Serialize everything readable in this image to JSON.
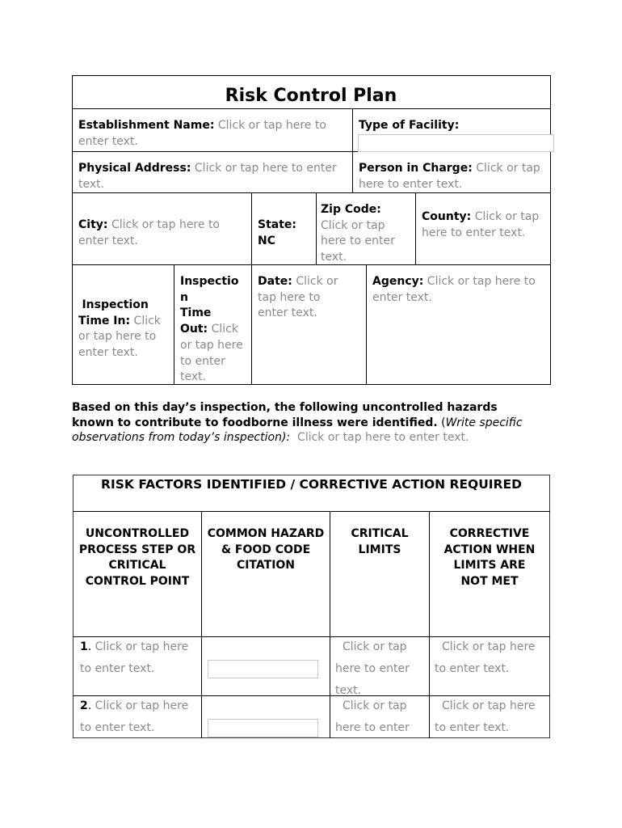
{
  "document": {
    "title": "Risk Control Plan",
    "placeholder": "Click or tap here to enter text.",
    "establishment_name": {
      "label": "Establishment Name:",
      "value": "Click or tap here to enter text."
    },
    "type_of_facility": {
      "label": "Type of Facility:",
      "value": ""
    },
    "physical_address": {
      "label": "Physical Address:",
      "value": "Click or tap here to enter text."
    },
    "person_in_charge": {
      "label": "Person in Charge:",
      "value": "Click or tap here to enter text."
    },
    "city": {
      "label": "City:",
      "value": "Click or tap here to enter text."
    },
    "state": {
      "label": "State:",
      "value": "NC"
    },
    "zip_code": {
      "label": "Zip Code:",
      "value": "Click or tap here to enter text."
    },
    "county": {
      "label": "County:",
      "value": "Click or tap here to enter text."
    },
    "time_in": {
      "label1": "Inspection",
      "label2": "Time In:",
      "value": "Click or tap here to enter text."
    },
    "time_out": {
      "label1": "Inspectio",
      "label1b": "n",
      "label2": "Time",
      "label3": "Out:",
      "value": "Click or tap here to enter text."
    },
    "date": {
      "label": "Date:",
      "value": "Click or tap here to enter text."
    },
    "agency": {
      "label": "Agency:",
      "value": "Click or tap here to enter text."
    },
    "intro": {
      "bold": "Based on this day’s inspection, the following uncontrolled hazards known to contribute to foodborne illness were identified.",
      "italic_open": "(",
      "italic": "Write specific observations from today’s inspection):",
      "value": "Click or tap here to enter text."
    },
    "risk_table": {
      "title": "RISK FACTORS IDENTIFIED / CORRECTIVE ACTION REQUIRED",
      "columns": [
        "UNCONTROLLED PROCESS STEP OR CRITICAL CONTROL POINT",
        "COMMON HAZARD & FOOD CODE CITATION",
        "CRITICAL LIMITS",
        "CORRECTIVE ACTION WHEN LIMITS ARE NOT MET"
      ],
      "rows": [
        {
          "num": "1",
          "step": "Click or tap here to enter text.",
          "hazard": "",
          "limits": "Click or tap here to enter text.",
          "action": "Click or tap here to enter text."
        },
        {
          "num": "2",
          "step": "Click or tap here to enter text.",
          "hazard": "",
          "limits": "Click or tap here to enter text.",
          "action": "Click or tap here to enter text."
        }
      ]
    }
  }
}
